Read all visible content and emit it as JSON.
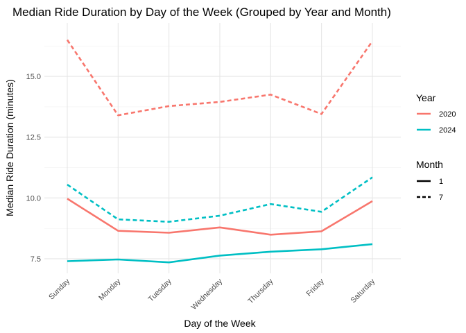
{
  "chart_data": {
    "type": "line",
    "title": "Median Ride Duration by Day of the Week (Grouped by Year and Month)",
    "xlabel": "Day of the Week",
    "ylabel": "Median Ride Duration (minutes)",
    "categories": [
      "Sunday",
      "Monday",
      "Tuesday",
      "Wednesday",
      "Thursday",
      "Friday",
      "Saturday"
    ],
    "ylim": [
      6.9,
      17.2
    ],
    "yticks": [
      7.5,
      10.0,
      12.5,
      15.0
    ],
    "ytick_labels": [
      "7.5",
      "10.0",
      "12.5",
      "15.0"
    ],
    "grid": true,
    "legend_position": "right",
    "colors": {
      "2020": "#f8766d",
      "2024": "#00bfc4"
    },
    "series": [
      {
        "year": "2020",
        "month": "1",
        "values": [
          9.97,
          8.65,
          8.57,
          8.79,
          8.49,
          8.63,
          9.87
        ]
      },
      {
        "year": "2020",
        "month": "7",
        "values": [
          16.5,
          13.4,
          13.78,
          13.95,
          14.25,
          13.45,
          16.45
        ]
      },
      {
        "year": "2024",
        "month": "1",
        "values": [
          7.4,
          7.47,
          7.35,
          7.63,
          7.79,
          7.89,
          8.1
        ]
      },
      {
        "year": "2024",
        "month": "7",
        "values": [
          10.55,
          9.12,
          9.02,
          9.27,
          9.75,
          9.43,
          10.85
        ]
      }
    ],
    "legend": {
      "color_title": "Year",
      "color_entries": [
        {
          "label": "2020",
          "color": "#f8766d"
        },
        {
          "label": "2024",
          "color": "#00bfc4"
        }
      ],
      "linetype_title": "Month",
      "linetype_entries": [
        {
          "label": "1",
          "dash": "solid"
        },
        {
          "label": "7",
          "dash": "dashed"
        }
      ]
    }
  }
}
